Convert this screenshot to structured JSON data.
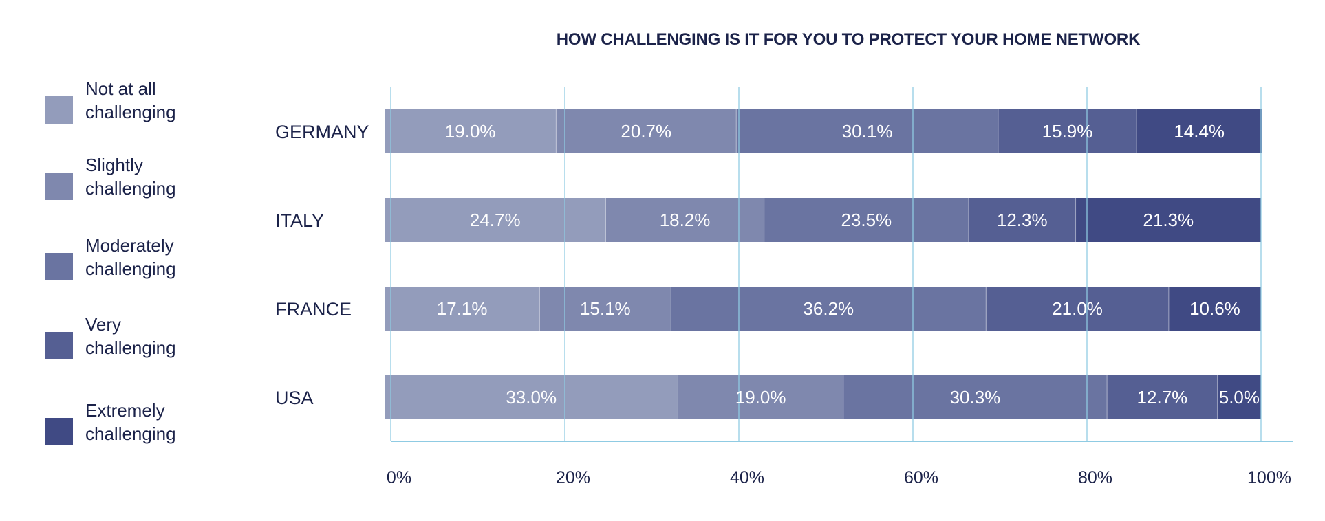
{
  "chart_data": {
    "type": "bar",
    "orientation": "horizontal",
    "stacked": true,
    "title": "HOW CHALLENGING IS IT FOR YOU TO PROTECT YOUR HOME NETWORK",
    "categories": [
      "GERMANY",
      "ITALY",
      "FRANCE",
      "USA"
    ],
    "series": [
      {
        "name": "Not at all challenging",
        "color": "#939cbb",
        "values": [
          19.0,
          24.7,
          17.1,
          33.0
        ],
        "labels": [
          "19.0%",
          "24.7%",
          "17.1%",
          "33.0%"
        ]
      },
      {
        "name": "Slightly challenging",
        "color": "#7f88ae",
        "values": [
          20.7,
          18.2,
          15.1,
          19.0
        ],
        "labels": [
          "20.7%",
          "18.2%",
          "15.1%",
          "19.0%"
        ]
      },
      {
        "name": "Moderately challenging",
        "color": "#6a74a1",
        "values": [
          30.1,
          23.5,
          36.2,
          30.3
        ],
        "labels": [
          "30.1%",
          "23.5%",
          "36.2%",
          "30.3%"
        ]
      },
      {
        "name": "Very challenging",
        "color": "#555f93",
        "values": [
          15.9,
          12.3,
          21.0,
          12.7
        ],
        "labels": [
          "15.9%",
          "12.3%",
          "21.0%",
          "12.7%"
        ]
      },
      {
        "name": "Extremely challenging",
        "color": "#404a84",
        "values": [
          14.4,
          21.3,
          10.6,
          5.0
        ],
        "labels": [
          "14.4%",
          "21.3%",
          "10.6%",
          "5.0%"
        ]
      }
    ],
    "x_ticks": [
      "0%",
      "20%",
      "40%",
      "60%",
      "80%",
      "100%"
    ],
    "xlim": [
      0,
      100
    ],
    "grid": true,
    "legend_position": "left"
  },
  "colors": {
    "text": "#1b2249",
    "gridline": "#8fcbe3",
    "value_label": "#ffffff"
  }
}
